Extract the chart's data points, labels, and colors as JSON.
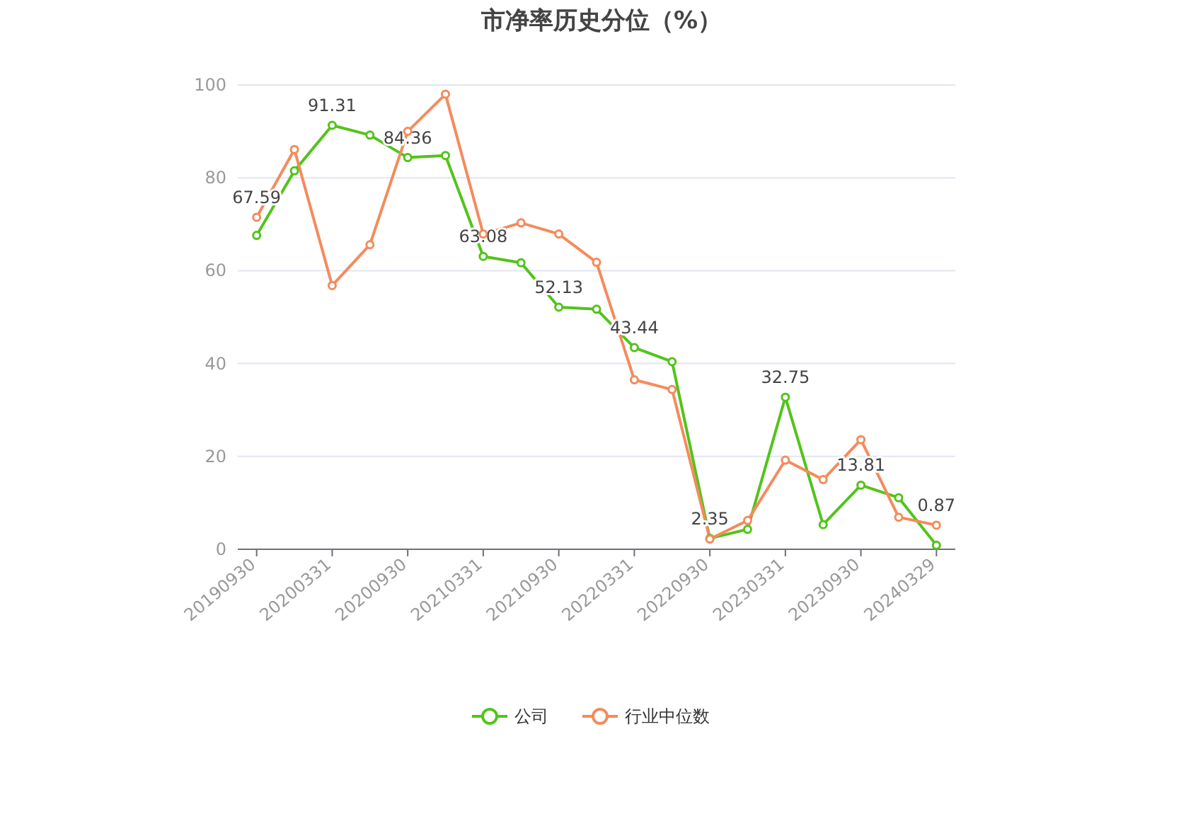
{
  "chart_data": {
    "type": "line",
    "title": "市净率历史分位（%）",
    "categories": [
      "20190930",
      null,
      "20200331",
      null,
      "20200930",
      null,
      "20210331",
      null,
      "20210930",
      null,
      "20220331",
      null,
      "20220930",
      null,
      "20230331",
      null,
      "20230930",
      null,
      "20240329"
    ],
    "series": [
      {
        "name": "公司",
        "color": "#52c41a",
        "values": [
          67.59,
          81.5,
          91.31,
          89.2,
          84.36,
          84.8,
          63.08,
          61.7,
          52.13,
          51.7,
          43.44,
          40.4,
          2.35,
          4.3,
          32.75,
          5.3,
          13.81,
          11.1,
          0.87
        ],
        "value_labels": [
          "67.59",
          null,
          "91.31",
          null,
          "84.36",
          null,
          "63.08",
          null,
          "52.13",
          null,
          "43.44",
          null,
          "2.35",
          null,
          "32.75",
          null,
          "13.81",
          null,
          "0.87"
        ]
      },
      {
        "name": "行业中位数",
        "color": "#f48b5c",
        "values": [
          71.5,
          86.1,
          56.8,
          65.6,
          90.0,
          98.0,
          67.9,
          70.3,
          67.9,
          61.8,
          36.5,
          34.4,
          2.2,
          6.2,
          19.2,
          15.0,
          23.6,
          6.9,
          5.2
        ]
      }
    ],
    "ylim": [
      0,
      100
    ],
    "yticks": [
      0,
      20,
      40,
      60,
      80,
      100
    ],
    "grid": "y",
    "legend": "bottom",
    "marker": "circle"
  }
}
